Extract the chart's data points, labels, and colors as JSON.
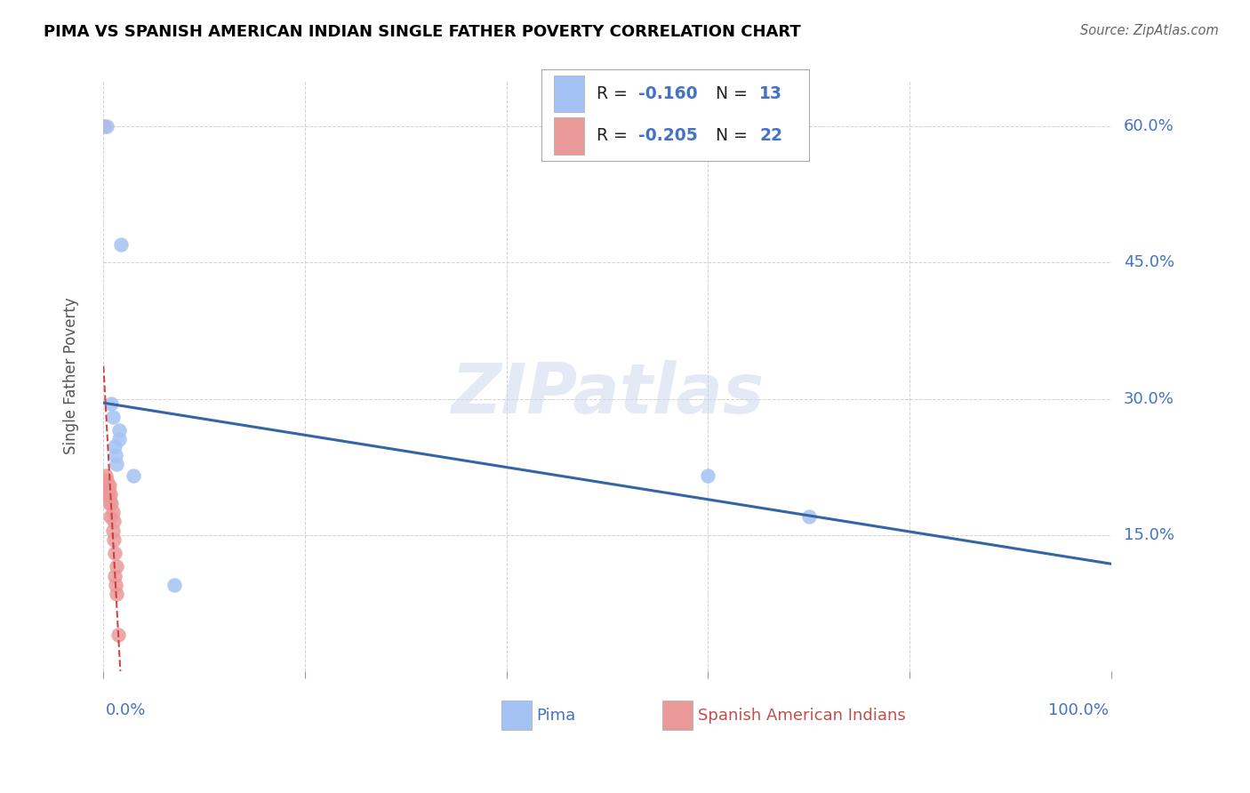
{
  "title": "PIMA VS SPANISH AMERICAN INDIAN SINGLE FATHER POVERTY CORRELATION CHART",
  "source": "Source: ZipAtlas.com",
  "ylabel": "Single Father Poverty",
  "xlim": [
    0.0,
    1.0
  ],
  "ylim": [
    0.0,
    0.65
  ],
  "yticks": [
    0.0,
    0.15,
    0.3,
    0.45,
    0.6
  ],
  "ytick_labels": [
    "",
    "15.0%",
    "30.0%",
    "45.0%",
    "60.0%"
  ],
  "xtick_labels_show": [
    "0.0%",
    "100.0%"
  ],
  "watermark": "ZIPatlas",
  "pima_R": -0.16,
  "pima_N": 13,
  "spanish_R": -0.205,
  "spanish_N": 22,
  "pima_color": "#a4c2f4",
  "spanish_color": "#ea9999",
  "pima_line_color": "#3465a4",
  "spanish_line_color": "#cc3333",
  "pima_x": [
    0.003,
    0.008,
    0.009,
    0.011,
    0.012,
    0.013,
    0.016,
    0.016,
    0.6,
    0.7,
    0.017,
    0.03,
    0.07
  ],
  "pima_y": [
    0.6,
    0.295,
    0.28,
    0.248,
    0.238,
    0.228,
    0.265,
    0.255,
    0.215,
    0.17,
    0.47,
    0.215,
    0.095
  ],
  "spanish_x": [
    0.001,
    0.002,
    0.003,
    0.004,
    0.004,
    0.005,
    0.005,
    0.006,
    0.006,
    0.007,
    0.007,
    0.008,
    0.009,
    0.009,
    0.01,
    0.01,
    0.011,
    0.011,
    0.012,
    0.013,
    0.013,
    0.015
  ],
  "spanish_y": [
    0.6,
    0.215,
    0.21,
    0.205,
    0.195,
    0.2,
    0.195,
    0.205,
    0.185,
    0.195,
    0.17,
    0.185,
    0.175,
    0.155,
    0.165,
    0.145,
    0.13,
    0.105,
    0.095,
    0.115,
    0.085,
    0.04
  ],
  "bg_color": "#ffffff",
  "grid_color": "#cccccc",
  "title_color": "#000000",
  "axis_label_color": "#4472c4",
  "legend_R_N_color": "#222222",
  "legend_value_color": "#4472c4",
  "legend_label_blue": "#4472c4",
  "legend_label_pink": "#c0504d"
}
